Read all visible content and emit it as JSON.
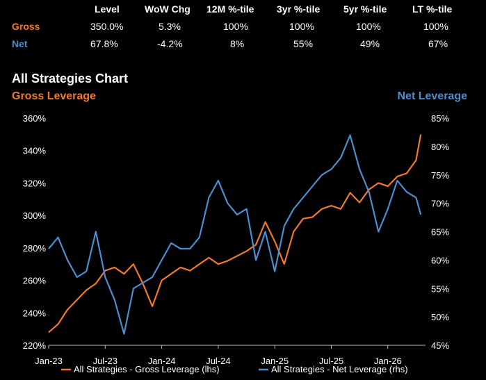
{
  "table": {
    "headers": [
      "Level",
      "WoW Chg",
      "12M %-tile",
      "3yr %-tile",
      "5yr %-tile",
      "LT %-tile"
    ],
    "rows": [
      {
        "label": "Gross",
        "color": "#F07A2A",
        "values": [
          "350.0%",
          "5.3%",
          "100%",
          "100%",
          "100%",
          "100%"
        ]
      },
      {
        "label": "Net",
        "color": "#4C8ED0",
        "values": [
          "67.8%",
          "-4.2%",
          "8%",
          "55%",
          "49%",
          "67%"
        ]
      }
    ]
  },
  "chart_data": {
    "type": "line",
    "title": "All Strategies Chart",
    "left_axis": {
      "title": "Gross Leverage",
      "color": "#F07A2A",
      "range": [
        220,
        360
      ],
      "ticks": [
        "220%",
        "240%",
        "260%",
        "280%",
        "300%",
        "320%",
        "340%",
        "360%"
      ]
    },
    "right_axis": {
      "title": "Net Leverage",
      "color": "#4C8ED0",
      "range": [
        45,
        85
      ],
      "ticks": [
        "45%",
        "50%",
        "55%",
        "60%",
        "65%",
        "70%",
        "75%",
        "80%",
        "85%"
      ]
    },
    "x_ticks": [
      "Jan-23",
      "Jul-23",
      "Jan-24",
      "Jul-24",
      "Jan-25",
      "Jul-25",
      "Jan-26"
    ],
    "x_range": [
      0,
      40
    ],
    "grid": false,
    "legend_position": "bottom",
    "series": [
      {
        "name": "All Strategies - Gross Leverage (lhs)",
        "axis": "left",
        "color": "#F07A2A",
        "x": [
          0,
          1,
          2,
          3,
          4,
          5,
          6,
          7,
          8,
          9,
          10,
          11,
          12,
          13,
          14,
          15,
          16,
          17,
          18,
          19,
          20,
          21,
          22,
          23,
          24,
          25,
          26,
          27,
          28,
          29,
          30,
          31,
          32,
          33,
          34,
          35,
          36,
          37,
          38,
          39,
          39.5
        ],
        "values": [
          228,
          233,
          242,
          248,
          254,
          258,
          266,
          268,
          264,
          270,
          258,
          244,
          260,
          264,
          268,
          266,
          270,
          274,
          270,
          272,
          275,
          278,
          282,
          296,
          284,
          270,
          290,
          298,
          299,
          304,
          306,
          304,
          314,
          308,
          316,
          320,
          318,
          324,
          326,
          334,
          350
        ]
      },
      {
        "name": "All Strategies - Net Leverage (rhs)",
        "axis": "right",
        "color": "#4C8ED0",
        "x": [
          0,
          1,
          2,
          3,
          4,
          5,
          6,
          7,
          8,
          9,
          10,
          11,
          12,
          13,
          14,
          15,
          16,
          17,
          18,
          19,
          20,
          21,
          22,
          23,
          24,
          25,
          26,
          27,
          28,
          29,
          30,
          31,
          32,
          33,
          34,
          35,
          36,
          37,
          38,
          39,
          39.5
        ],
        "values": [
          62,
          64,
          60,
          57,
          58,
          65,
          57,
          53,
          47,
          55,
          56,
          57,
          60,
          63,
          62,
          62,
          64,
          71,
          74,
          70,
          68,
          69,
          60,
          65,
          58,
          66,
          69,
          71,
          73,
          75,
          76,
          78,
          82,
          76,
          72,
          65,
          69,
          74,
          72,
          71,
          68
        ]
      }
    ]
  }
}
